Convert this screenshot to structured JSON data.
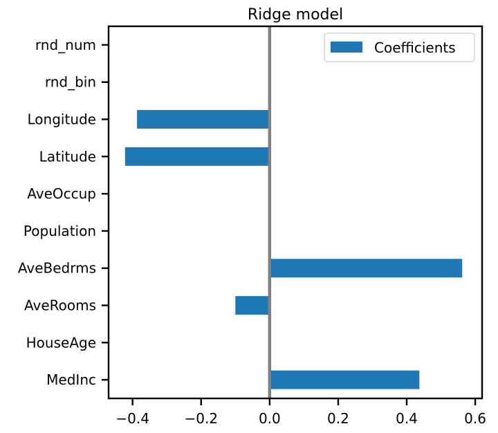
{
  "chart_data": {
    "type": "bar",
    "orientation": "horizontal",
    "title": "Ridge model",
    "xlabel": "",
    "ylabel": "",
    "categories": [
      "MedInc",
      "HouseAge",
      "AveRooms",
      "AveBedrms",
      "Population",
      "AveOccup",
      "Latitude",
      "Longitude",
      "rnd_bin",
      "rnd_num"
    ],
    "series": [
      {
        "name": "Coefficients",
        "color": "#1f77b4",
        "values": [
          0.437,
          0.0,
          -0.1,
          0.562,
          0.0,
          -0.003,
          -0.422,
          -0.387,
          0.0,
          0.0
        ]
      }
    ],
    "xlim": [
      -0.47,
      0.62
    ],
    "xticks": [
      -0.4,
      -0.2,
      0.0,
      0.2,
      0.4,
      0.6
    ],
    "xtick_labels": [
      "−0.4",
      "−0.2",
      "0.0",
      "0.2",
      "0.4",
      "0.6"
    ],
    "zero_line": {
      "x": 0.0,
      "color": "#808080"
    },
    "grid": false,
    "legend_position": "top-right"
  }
}
